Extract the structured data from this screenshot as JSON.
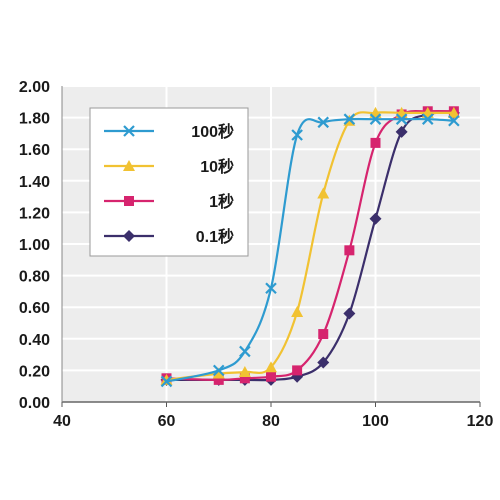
{
  "chart_data": {
    "type": "line",
    "title": "",
    "xlabel": "",
    "ylabel": "",
    "xlim": [
      40,
      120
    ],
    "ylim": [
      0,
      2
    ],
    "x_ticks": [
      "40",
      "60",
      "80",
      "100",
      "120"
    ],
    "y_ticks": [
      "0.00",
      "0.20",
      "0.40",
      "0.60",
      "0.80",
      "1.00",
      "1.20",
      "1.40",
      "1.60",
      "1.80",
      "2.00"
    ],
    "grid": true,
    "legend_position": "top-left",
    "series": [
      {
        "name": "100秒",
        "color": "#2e9bd0",
        "marker": "x",
        "points": [
          [
            60,
            0.13
          ],
          [
            70,
            0.2
          ],
          [
            75,
            0.32
          ],
          [
            80,
            0.72
          ],
          [
            85,
            1.69
          ],
          [
            90,
            1.77
          ],
          [
            95,
            1.79
          ],
          [
            100,
            1.79
          ],
          [
            105,
            1.79
          ],
          [
            110,
            1.79
          ],
          [
            115,
            1.78
          ]
        ]
      },
      {
        "name": "10秒",
        "color": "#f1c232",
        "marker": "triangle",
        "points": [
          [
            60,
            0.14
          ],
          [
            70,
            0.18
          ],
          [
            75,
            0.19
          ],
          [
            80,
            0.22
          ],
          [
            85,
            0.57
          ],
          [
            90,
            1.32
          ],
          [
            95,
            1.78
          ],
          [
            100,
            1.83
          ],
          [
            105,
            1.83
          ],
          [
            110,
            1.83
          ],
          [
            115,
            1.83
          ]
        ]
      },
      {
        "name": "1秒",
        "color": "#d6246e",
        "marker": "square",
        "points": [
          [
            60,
            0.15
          ],
          [
            70,
            0.14
          ],
          [
            75,
            0.15
          ],
          [
            80,
            0.16
          ],
          [
            85,
            0.2
          ],
          [
            90,
            0.43
          ],
          [
            95,
            0.96
          ],
          [
            100,
            1.64
          ],
          [
            105,
            1.82
          ],
          [
            110,
            1.84
          ],
          [
            115,
            1.84
          ]
        ]
      },
      {
        "name": "0.1秒",
        "color": "#3b2f6b",
        "marker": "diamond",
        "points": [
          [
            60,
            0.14
          ],
          [
            70,
            0.14
          ],
          [
            75,
            0.14
          ],
          [
            80,
            0.14
          ],
          [
            85,
            0.16
          ],
          [
            90,
            0.25
          ],
          [
            95,
            0.56
          ],
          [
            100,
            1.16
          ],
          [
            105,
            1.71
          ],
          [
            110,
            1.82
          ],
          [
            115,
            1.83
          ]
        ]
      }
    ]
  }
}
